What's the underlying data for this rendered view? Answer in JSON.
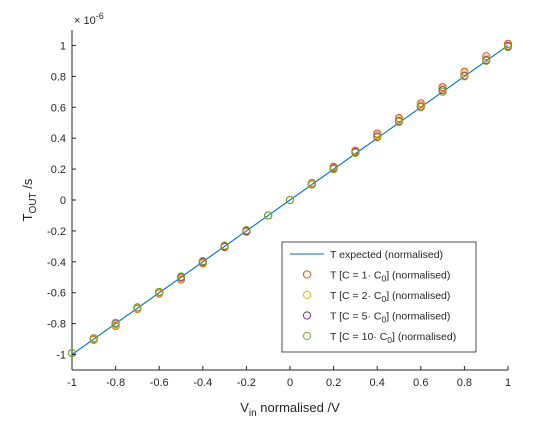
{
  "chart_data": {
    "type": "scatter",
    "xlabel": "V",
    "xlabel_sub": "in",
    "xlabel_rest": " normalised /V",
    "ylabel": "T",
    "ylabel_sub": "OUT",
    "ylabel_rest": " /s",
    "exponent_label": "× 10",
    "exponent_power": "-6",
    "xlim": [
      -1,
      1
    ],
    "ylim": [
      -1.1,
      1.1
    ],
    "x_ticks": [
      -1,
      -0.8,
      -0.6,
      -0.4,
      -0.2,
      0,
      0.2,
      0.4,
      0.6,
      0.8,
      1
    ],
    "x_tick_labels": [
      "-1",
      "-0.8",
      "-0.6",
      "-0.4",
      "-0.2",
      "0",
      "0.2",
      "0.4",
      "0.6",
      "0.8",
      "1"
    ],
    "y_ticks": [
      -1,
      -0.8,
      -0.6,
      -0.4,
      -0.2,
      0,
      0.2,
      0.4,
      0.6,
      0.8,
      1
    ],
    "y_tick_labels": [
      "-1",
      "-0.8",
      "-0.6",
      "-0.4",
      "-0.2",
      "0",
      "0.2",
      "0.4",
      "0.6",
      "0.8",
      "1"
    ],
    "grid": false,
    "legend_position": "bottom-right",
    "line_series": {
      "label": "T expected (normalised)",
      "color": "#0072BD",
      "x": [
        -1,
        1
      ],
      "y": [
        -1,
        1
      ]
    },
    "x": [
      -1,
      -0.9,
      -0.8,
      -0.7,
      -0.6,
      -0.5,
      -0.4,
      -0.3,
      -0.2,
      -0.1,
      0,
      0.1,
      0.2,
      0.3,
      0.4,
      0.5,
      0.6,
      0.7,
      0.8,
      0.9,
      1
    ],
    "series": [
      {
        "label_prefix": "T [C = 1· C",
        "label_sub": "0",
        "label_suffix": "] (normalised)",
        "color": "#D95319",
        "y": [
          -0.99,
          -0.905,
          -0.815,
          -0.705,
          -0.605,
          -0.515,
          -0.41,
          -0.305,
          -0.205,
          -0.1,
          0,
          0.11,
          0.215,
          0.32,
          0.43,
          0.53,
          0.625,
          0.73,
          0.83,
          0.93,
          1.01
        ]
      },
      {
        "label_prefix": "T [C = 2· C",
        "label_sub": "0",
        "label_suffix": "] (normalised)",
        "color": "#EDB120",
        "y": [
          -0.99,
          -0.9,
          -0.81,
          -0.7,
          -0.6,
          -0.505,
          -0.405,
          -0.3,
          -0.2,
          -0.1,
          0,
          0.105,
          0.21,
          0.315,
          0.42,
          0.52,
          0.615,
          0.72,
          0.82,
          0.915,
          1.0
        ]
      },
      {
        "label_prefix": "T [C = 5· C",
        "label_sub": "0",
        "label_suffix": "] (normalised)",
        "color": "#7E2F8E",
        "y": [
          -0.99,
          -0.895,
          -0.8,
          -0.695,
          -0.595,
          -0.5,
          -0.4,
          -0.3,
          -0.2,
          -0.1,
          0,
          0.1,
          0.205,
          0.31,
          0.41,
          0.51,
          0.605,
          0.71,
          0.805,
          0.905,
          0.995
        ]
      },
      {
        "label_prefix": "T [C = 10· C",
        "label_sub": "0",
        "label_suffix": "] (normalised)",
        "color": "#77AC30",
        "y": [
          -0.99,
          -0.895,
          -0.795,
          -0.695,
          -0.595,
          -0.495,
          -0.395,
          -0.295,
          -0.195,
          -0.1,
          0,
          0.1,
          0.2,
          0.305,
          0.405,
          0.505,
          0.6,
          0.7,
          0.8,
          0.9,
          0.99
        ]
      }
    ]
  }
}
